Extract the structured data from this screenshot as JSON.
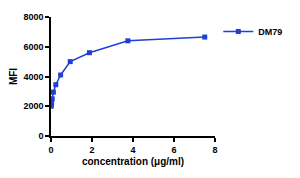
{
  "chart_data": {
    "type": "line",
    "x_label": "concentration (μg/ml)",
    "y_label": "MFI",
    "xlim": [
      0,
      8
    ],
    "xticks": [
      0,
      2,
      4,
      6,
      8
    ],
    "ylim": [
      0,
      8000
    ],
    "yticks": [
      0,
      2000,
      4000,
      6000,
      8000
    ],
    "grid": false,
    "legend": "right",
    "series": [
      {
        "name": "DM79",
        "color": "#1f3fd8",
        "marker": "square",
        "line_style": "solid",
        "x": [
          0.0073,
          0.0146,
          0.0293,
          0.0586,
          0.117,
          0.234,
          0.469,
          0.9375,
          1.875,
          3.75,
          7.5
        ],
        "values": [
          2000,
          2100,
          2250,
          2500,
          2950,
          3450,
          4100,
          5000,
          5600,
          6400,
          6650
        ]
      }
    ]
  }
}
